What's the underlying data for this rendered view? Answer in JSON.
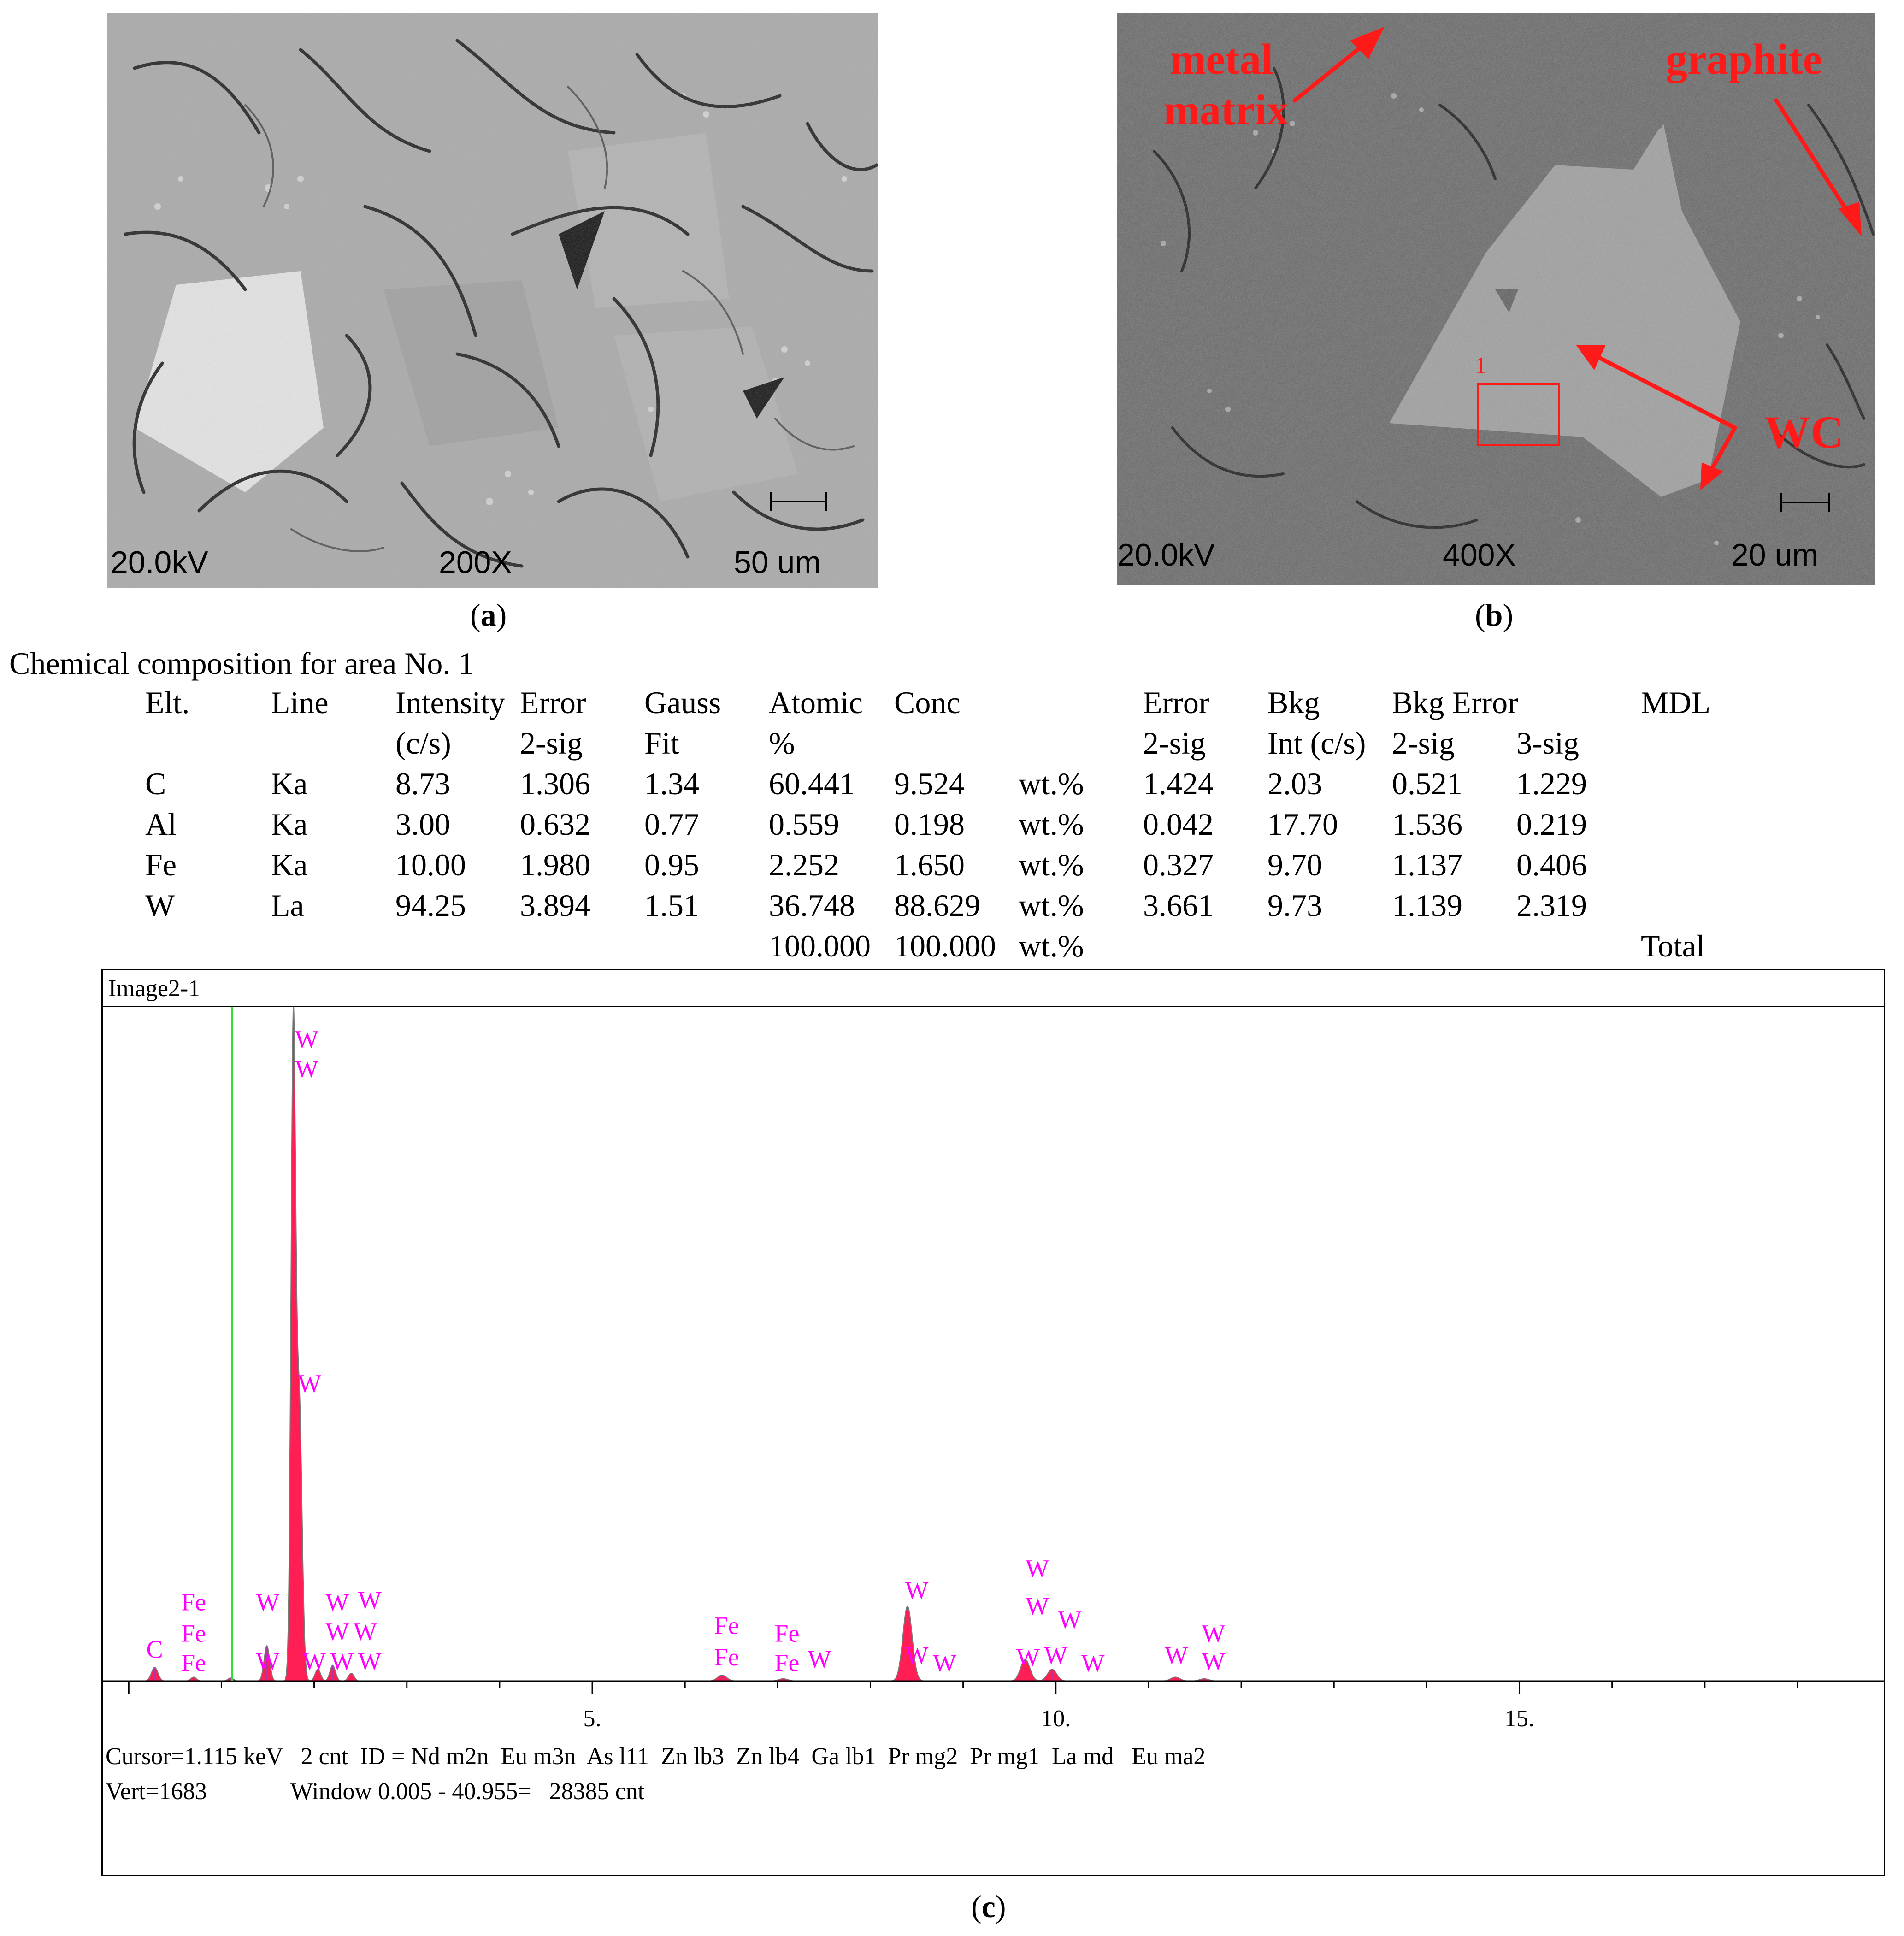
{
  "panel_a": {
    "kv": "20.0kV",
    "magnification": "200X",
    "scale": "50 um",
    "caption": "a"
  },
  "panel_b": {
    "kv": "20.0kV",
    "magnification": "400X",
    "scale": "20 um",
    "caption": "b",
    "labels": {
      "matrix_line1": "metal",
      "matrix_line2": "matrix",
      "graphite": "graphite",
      "wc": "WC",
      "area": "1"
    },
    "annotation_color": "#ff1a1a"
  },
  "table": {
    "title": "Chemical composition for area No. 1",
    "headers_row1": [
      "Elt.",
      "Line",
      "Intensity",
      "Error",
      "Gauss",
      "Atomic",
      "Conc",
      "",
      "Error",
      "Bkg",
      "Bkg Error",
      "",
      "MDL"
    ],
    "headers_row2": [
      "",
      "",
      "(c/s)",
      "2-sig",
      "Fit",
      "%",
      "",
      "",
      "2-sig",
      "Int (c/s)",
      "2-sig",
      "3-sig",
      ""
    ],
    "rows": [
      [
        "C",
        "Ka",
        "8.73",
        "1.306",
        "1.34",
        "60.441",
        "9.524",
        "wt.%",
        "1.424",
        "2.03",
        "0.521",
        "1.229",
        ""
      ],
      [
        "Al",
        "Ka",
        "3.00",
        "0.632",
        "0.77",
        "0.559",
        "0.198",
        "wt.%",
        "0.042",
        "17.70",
        "1.536",
        "0.219",
        ""
      ],
      [
        "Fe",
        "Ka",
        "10.00",
        "1.980",
        "0.95",
        "2.252",
        "1.650",
        "wt.%",
        "0.327",
        "9.70",
        "1.137",
        "0.406",
        ""
      ],
      [
        "W",
        "La",
        "94.25",
        "3.894",
        "1.51",
        "36.748",
        "88.629",
        "wt.%",
        "3.661",
        "9.73",
        "1.139",
        "2.319",
        ""
      ]
    ],
    "total_row": [
      "",
      "",
      "",
      "",
      "",
      "100.000",
      "100.000",
      "wt.%",
      "",
      "",
      "",
      "",
      "Total"
    ]
  },
  "chart_data": {
    "type": "line",
    "title": "Image2-1",
    "caption": "c",
    "xlabel": "",
    "ylabel": "",
    "xlim": [
      -0.25,
      18.9
    ],
    "ylim": [
      0,
      1683
    ],
    "x_ticks": [
      {
        "value": 5,
        "label": "5."
      },
      {
        "value": 10,
        "label": "10."
      },
      {
        "value": 15,
        "label": "15."
      }
    ],
    "cursor_kev": 1.115,
    "colors": {
      "fill": "#ff1f55",
      "outline": "#7a7a7a",
      "cursor": "#33dd33",
      "label": "#ff00ff",
      "blue": "#5050ff"
    },
    "peaks": [
      {
        "x": 0.28,
        "y": 35,
        "w": 0.035
      },
      {
        "x": 0.7,
        "y": 10,
        "w": 0.03
      },
      {
        "x": 1.1,
        "y": 8,
        "w": 0.03
      },
      {
        "x": 1.49,
        "y": 90,
        "w": 0.03
      },
      {
        "x": 1.775,
        "y": 1650,
        "w": 0.025
      },
      {
        "x": 1.84,
        "y": 700,
        "w": 0.03
      },
      {
        "x": 2.04,
        "y": 30,
        "w": 0.03
      },
      {
        "x": 2.2,
        "y": 40,
        "w": 0.03
      },
      {
        "x": 2.4,
        "y": 20,
        "w": 0.03
      },
      {
        "x": 6.4,
        "y": 15,
        "w": 0.05
      },
      {
        "x": 7.06,
        "y": 6,
        "w": 0.05
      },
      {
        "x": 8.4,
        "y": 190,
        "w": 0.05
      },
      {
        "x": 9.67,
        "y": 55,
        "w": 0.05
      },
      {
        "x": 9.96,
        "y": 30,
        "w": 0.05
      },
      {
        "x": 11.29,
        "y": 10,
        "w": 0.05
      },
      {
        "x": 11.6,
        "y": 6,
        "w": 0.05
      }
    ],
    "peak_labels": [
      {
        "text": "C",
        "x": 0.28,
        "y": 60
      },
      {
        "text": "Fe",
        "x": 0.7,
        "y": 180
      },
      {
        "text": "Fe",
        "x": 0.7,
        "y": 100
      },
      {
        "text": "Fe",
        "x": 0.7,
        "y": 25
      },
      {
        "text": "W",
        "x": 1.5,
        "y": 180
      },
      {
        "text": "W",
        "x": 1.5,
        "y": 30
      },
      {
        "text": "W",
        "x": 1.92,
        "y": 1610
      },
      {
        "text": "W",
        "x": 1.92,
        "y": 1535
      },
      {
        "text": "W",
        "x": 1.95,
        "y": 735
      },
      {
        "text": "W",
        "x": 2.0,
        "y": 30
      },
      {
        "text": "W",
        "x": 2.25,
        "y": 180
      },
      {
        "text": "W",
        "x": 2.6,
        "y": 185
      },
      {
        "text": "W",
        "x": 2.25,
        "y": 105
      },
      {
        "text": "W",
        "x": 2.55,
        "y": 105
      },
      {
        "text": "W",
        "x": 2.3,
        "y": 30
      },
      {
        "text": "W",
        "x": 2.6,
        "y": 30
      },
      {
        "text": "Fe",
        "x": 6.45,
        "y": 120
      },
      {
        "text": "Fe",
        "x": 6.45,
        "y": 40
      },
      {
        "text": "Fe",
        "x": 7.1,
        "y": 100
      },
      {
        "text": "Fe",
        "x": 7.1,
        "y": 25
      },
      {
        "text": "W",
        "x": 7.45,
        "y": 35
      },
      {
        "text": "W",
        "x": 8.5,
        "y": 210
      },
      {
        "text": "W",
        "x": 8.5,
        "y": 45
      },
      {
        "text": "W",
        "x": 8.8,
        "y": 25
      },
      {
        "text": "W",
        "x": 9.8,
        "y": 265
      },
      {
        "text": "W",
        "x": 9.8,
        "y": 170
      },
      {
        "text": "W",
        "x": 10.15,
        "y": 135
      },
      {
        "text": "W",
        "x": 9.7,
        "y": 40
      },
      {
        "text": "W",
        "x": 10.0,
        "y": 45
      },
      {
        "text": "W",
        "x": 10.4,
        "y": 25
      },
      {
        "text": "W",
        "x": 11.3,
        "y": 45
      },
      {
        "text": "W",
        "x": 11.7,
        "y": 100
      },
      {
        "text": "W",
        "x": 11.7,
        "y": 30
      }
    ],
    "status_line1": "Cursor=1.115 keV   2 cnt  ID = Nd m2n  Eu m3n  As l11  Zn lb3  Zn lb4  Ga lb1  Pr mg2  Pr mg1  La md   Eu ma2",
    "status_line2": "Vert=1683              Window 0.005 - 40.955=   28385 cnt"
  }
}
